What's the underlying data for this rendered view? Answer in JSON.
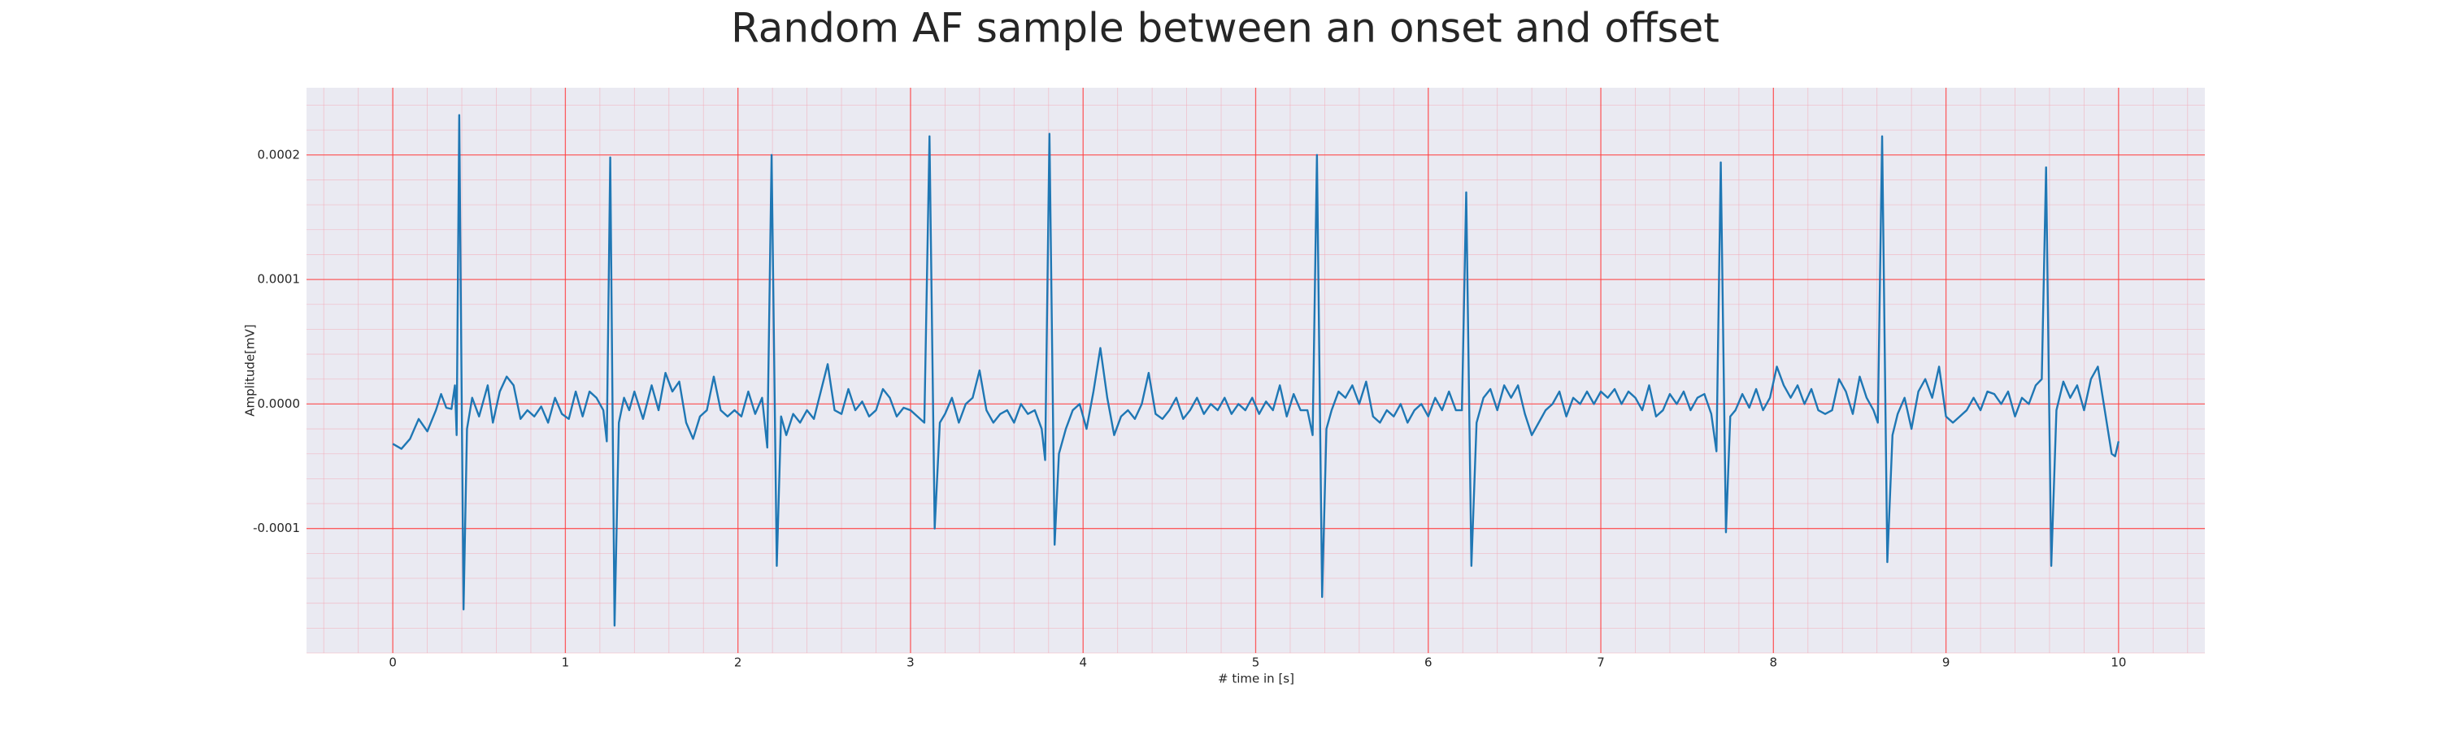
{
  "chart_data": {
    "type": "line",
    "title": "Random AF sample between an onset and offset",
    "xlabel": "# time in [s]",
    "ylabel": "Amplitude[mV]",
    "xlim": [
      -0.5,
      10.5
    ],
    "ylim": [
      -0.0002,
      0.000254
    ],
    "xticks": [
      0,
      1,
      2,
      3,
      4,
      5,
      6,
      7,
      8,
      9,
      10
    ],
    "yticks": [
      -0.0001,
      {
        "value": 0,
        "label": "0.0000"
      },
      0.0001,
      0.0002
    ],
    "grid": true,
    "minor_grid": true,
    "x": [
      0.0,
      0.05,
      0.1,
      0.15,
      0.2,
      0.25,
      0.28,
      0.31,
      0.34,
      0.36,
      0.37,
      0.385,
      0.41,
      0.43,
      0.46,
      0.5,
      0.55,
      0.58,
      0.62,
      0.66,
      0.7,
      0.74,
      0.78,
      0.82,
      0.86,
      0.9,
      0.94,
      0.98,
      1.02,
      1.06,
      1.1,
      1.14,
      1.18,
      1.22,
      1.24,
      1.26,
      1.285,
      1.31,
      1.34,
      1.37,
      1.4,
      1.45,
      1.5,
      1.54,
      1.58,
      1.62,
      1.66,
      1.7,
      1.74,
      1.78,
      1.82,
      1.86,
      1.9,
      1.94,
      1.98,
      2.02,
      2.06,
      2.1,
      2.14,
      2.17,
      2.195,
      2.225,
      2.25,
      2.28,
      2.32,
      2.36,
      2.4,
      2.44,
      2.48,
      2.52,
      2.56,
      2.6,
      2.64,
      2.68,
      2.72,
      2.76,
      2.8,
      2.84,
      2.88,
      2.92,
      2.96,
      3.0,
      3.04,
      3.08,
      3.11,
      3.14,
      3.17,
      3.2,
      3.24,
      3.28,
      3.32,
      3.36,
      3.4,
      3.44,
      3.48,
      3.52,
      3.56,
      3.6,
      3.64,
      3.68,
      3.72,
      3.76,
      3.78,
      3.805,
      3.835,
      3.86,
      3.9,
      3.94,
      3.98,
      4.02,
      4.06,
      4.1,
      4.14,
      4.18,
      4.22,
      4.26,
      4.3,
      4.34,
      4.38,
      4.42,
      4.46,
      4.5,
      4.54,
      4.58,
      4.62,
      4.66,
      4.7,
      4.74,
      4.78,
      4.82,
      4.86,
      4.9,
      4.94,
      4.98,
      5.02,
      5.06,
      5.1,
      5.14,
      5.18,
      5.22,
      5.26,
      5.3,
      5.33,
      5.355,
      5.385,
      5.41,
      5.44,
      5.48,
      5.52,
      5.56,
      5.6,
      5.64,
      5.68,
      5.72,
      5.76,
      5.8,
      5.84,
      5.88,
      5.92,
      5.96,
      6.0,
      6.04,
      6.08,
      6.12,
      6.16,
      6.195,
      6.22,
      6.25,
      6.28,
      6.32,
      6.36,
      6.4,
      6.44,
      6.48,
      6.52,
      6.56,
      6.6,
      6.64,
      6.68,
      6.72,
      6.76,
      6.8,
      6.84,
      6.88,
      6.92,
      6.96,
      7.0,
      7.04,
      7.08,
      7.12,
      7.16,
      7.2,
      7.24,
      7.28,
      7.32,
      7.36,
      7.4,
      7.44,
      7.48,
      7.52,
      7.56,
      7.6,
      7.64,
      7.67,
      7.695,
      7.725,
      7.75,
      7.78,
      7.82,
      7.86,
      7.9,
      7.94,
      7.98,
      8.02,
      8.06,
      8.1,
      8.14,
      8.18,
      8.22,
      8.26,
      8.3,
      8.34,
      8.38,
      8.42,
      8.46,
      8.5,
      8.54,
      8.58,
      8.605,
      8.63,
      8.66,
      8.69,
      8.72,
      8.76,
      8.8,
      8.84,
      8.88,
      8.92,
      8.96,
      9.0,
      9.04,
      9.08,
      9.12,
      9.16,
      9.2,
      9.24,
      9.28,
      9.32,
      9.36,
      9.4,
      9.44,
      9.48,
      9.52,
      9.555,
      9.58,
      9.61,
      9.64,
      9.68,
      9.72,
      9.76,
      9.8,
      9.84,
      9.88,
      9.92,
      9.96,
      9.98,
      10.0
    ],
    "series": [
      {
        "name": "Amplitude",
        "color": "#1f77b4",
        "values": [
          -3.2e-05,
          -3.6e-05,
          -2.8e-05,
          -1.2e-05,
          -2.2e-05,
          -5e-06,
          8e-06,
          -3e-06,
          -4e-06,
          1.5e-05,
          -2.5e-05,
          0.000232,
          -0.000165,
          -2e-05,
          5e-06,
          -1e-05,
          1.5e-05,
          -1.5e-05,
          1e-05,
          2.2e-05,
          1.5e-05,
          -1.2e-05,
          -5e-06,
          -1e-05,
          -2e-06,
          -1.5e-05,
          5e-06,
          -8e-06,
          -1.2e-05,
          1e-05,
          -1e-05,
          1e-05,
          5e-06,
          -5e-06,
          -3e-05,
          0.000198,
          -0.000178,
          -1.5e-05,
          5e-06,
          -5e-06,
          1e-05,
          -1.2e-05,
          1.5e-05,
          -5e-06,
          2.5e-05,
          1e-05,
          1.8e-05,
          -1.5e-05,
          -2.8e-05,
          -1e-05,
          -5e-06,
          2.2e-05,
          -5e-06,
          -1e-05,
          -5e-06,
          -1e-05,
          1e-05,
          -8e-06,
          5e-06,
          -3.5e-05,
          0.0002,
          -0.00013,
          -1e-05,
          -2.5e-05,
          -8e-06,
          -1.5e-05,
          -5e-06,
          -1.2e-05,
          1e-05,
          3.2e-05,
          -5e-06,
          -8e-06,
          1.2e-05,
          -5e-06,
          2e-06,
          -1e-05,
          -5e-06,
          1.2e-05,
          5e-06,
          -1e-05,
          -3e-06,
          -5e-06,
          -1e-05,
          -1.5e-05,
          0.000215,
          -0.0001,
          -1.5e-05,
          -8e-06,
          5e-06,
          -1.5e-05,
          0,
          5e-06,
          2.7e-05,
          -5e-06,
          -1.5e-05,
          -8e-06,
          -5e-06,
          -1.5e-05,
          0,
          -8e-06,
          -5e-06,
          -2e-05,
          -4.5e-05,
          0.000217,
          -0.000113,
          -4e-05,
          -2e-05,
          -5e-06,
          0,
          -2e-05,
          1e-05,
          4.5e-05,
          5e-06,
          -2.5e-05,
          -1e-05,
          -5e-06,
          -1.2e-05,
          0,
          2.5e-05,
          -8e-06,
          -1.2e-05,
          -5e-06,
          5e-06,
          -1.2e-05,
          -5e-06,
          5e-06,
          -8e-06,
          0,
          -5e-06,
          5e-06,
          -8e-06,
          0,
          -5e-06,
          5e-06,
          -8e-06,
          2e-06,
          -5e-06,
          1.5e-05,
          -1e-05,
          8e-06,
          -5e-06,
          -5e-06,
          -2.5e-05,
          0.0002,
          -0.000155,
          -2e-05,
          -5e-06,
          1e-05,
          5e-06,
          1.5e-05,
          0,
          1.8e-05,
          -1e-05,
          -1.5e-05,
          -5e-06,
          -1e-05,
          0,
          -1.5e-05,
          -5e-06,
          0,
          -1e-05,
          5e-06,
          -5e-06,
          1e-05,
          -5e-06,
          -5e-06,
          0.00017,
          -0.00013,
          -1.5e-05,
          5e-06,
          1.2e-05,
          -5e-06,
          1.5e-05,
          5e-06,
          1.5e-05,
          -8e-06,
          -2.5e-05,
          -1.5e-05,
          -5e-06,
          0,
          1e-05,
          -1e-05,
          5e-06,
          0,
          1e-05,
          0,
          1e-05,
          5e-06,
          1.2e-05,
          0,
          1e-05,
          5e-06,
          -5e-06,
          1.5e-05,
          -1e-05,
          -5e-06,
          8e-06,
          0,
          1e-05,
          -5e-06,
          5e-06,
          8e-06,
          -8e-06,
          -3.8e-05,
          0.000194,
          -0.000103,
          -1e-05,
          -5e-06,
          8e-06,
          -3e-06,
          1.2e-05,
          -5e-06,
          5e-06,
          3e-05,
          1.5e-05,
          5e-06,
          1.5e-05,
          0,
          1.2e-05,
          -5e-06,
          -8e-06,
          -5e-06,
          2e-05,
          1e-05,
          -8e-06,
          2.2e-05,
          5e-06,
          -5e-06,
          -1.5e-05,
          0.000215,
          -0.000127,
          -2.5e-05,
          -8e-06,
          5e-06,
          -2e-05,
          1e-05,
          2e-05,
          5e-06,
          3e-05,
          -1e-05,
          -1.5e-05,
          -1e-05,
          -5e-06,
          5e-06,
          -5e-06,
          1e-05,
          8e-06,
          0,
          1e-05,
          -1e-05,
          5e-06,
          0,
          1.5e-05,
          2e-05,
          0.00019,
          -0.00013,
          -5e-06,
          1.8e-05,
          5e-06,
          1.5e-05,
          -5e-06,
          2e-05,
          3e-05,
          -5e-06,
          -4e-05,
          -4.2e-05,
          -3e-05
        ]
      }
    ]
  }
}
